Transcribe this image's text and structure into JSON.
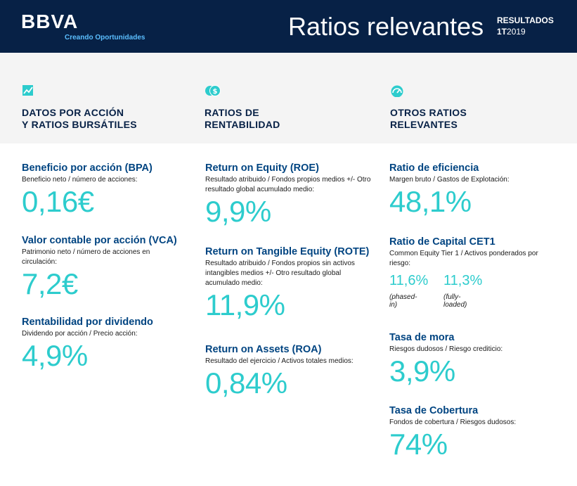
{
  "header": {
    "logo": "BBVA",
    "tagline": "Creando Oportunidades",
    "title": "Ratios relevantes",
    "results_label": "RESULTADOS",
    "period_bold": "1T",
    "period_year": "2019"
  },
  "colors": {
    "header_bg": "#072146",
    "accent": "#2dcccd",
    "title_blue": "#004481",
    "band_bg": "#f4f4f4"
  },
  "columns": [
    {
      "icon": "chart-trend-icon",
      "title": "DATOS POR ACCIÓN\nY RATIOS BURSÁTILES",
      "metrics": [
        {
          "title": "Beneficio por acción (BPA)",
          "desc": "Beneficio neto / número de acciones:",
          "value": "0,16€"
        },
        {
          "title": "Valor contable por acción (VCA)",
          "desc": "Patrimonio neto / número de acciones en circulación:",
          "value": "7,2€"
        },
        {
          "title": "Rentabilidad por dividendo",
          "desc": "Dividendo por acción / Precio acción:",
          "value": "4,9%"
        }
      ]
    },
    {
      "icon": "coins-icon",
      "title": "RATIOS  DE\nRENTABILIDAD",
      "metrics": [
        {
          "title": "Return on Equity (ROE)",
          "desc": "Resultado atribuido / Fondos propios medios +/- Otro resultado global acumulado medio:",
          "value": "9,9%"
        },
        {
          "title": "Return on Tangible Equity (ROTE)",
          "desc": "Resultado atribuido / Fondos propios sin activos intangibles medios +/- Otro resultado global acumulado medio:",
          "value": "11,9%"
        },
        {
          "title": "Return on Assets (ROA)",
          "desc": "Resultado del ejercicio / Activos totales medios:",
          "value": "0,84%"
        }
      ]
    },
    {
      "icon": "gauge-icon",
      "title": "OTROS RATIOS\nRELEVANTES",
      "metrics": [
        {
          "title": "Ratio de eficiencia",
          "desc": "Margen bruto / Gastos de Explotación:",
          "value": "48,1%"
        },
        {
          "title": "Ratio de Capital CET1",
          "desc": "Common Equity Tier 1 / Activos ponderados por riesgo:"
        },
        {
          "title": "Tasa de mora",
          "desc": "Riesgos dudosos / Riesgo crediticio:",
          "value": "3,9%"
        },
        {
          "title": "Tasa de  Cobertura",
          "desc": "Fondos de cobertura / Riesgos dudosos:",
          "value": "74%"
        }
      ]
    }
  ],
  "cet1": {
    "phased_in_value": "11,6%",
    "phased_in_label": "(phased-in)",
    "fully_loaded_value": "11,3%",
    "fully_loaded_label": "(fully-loaded)"
  }
}
